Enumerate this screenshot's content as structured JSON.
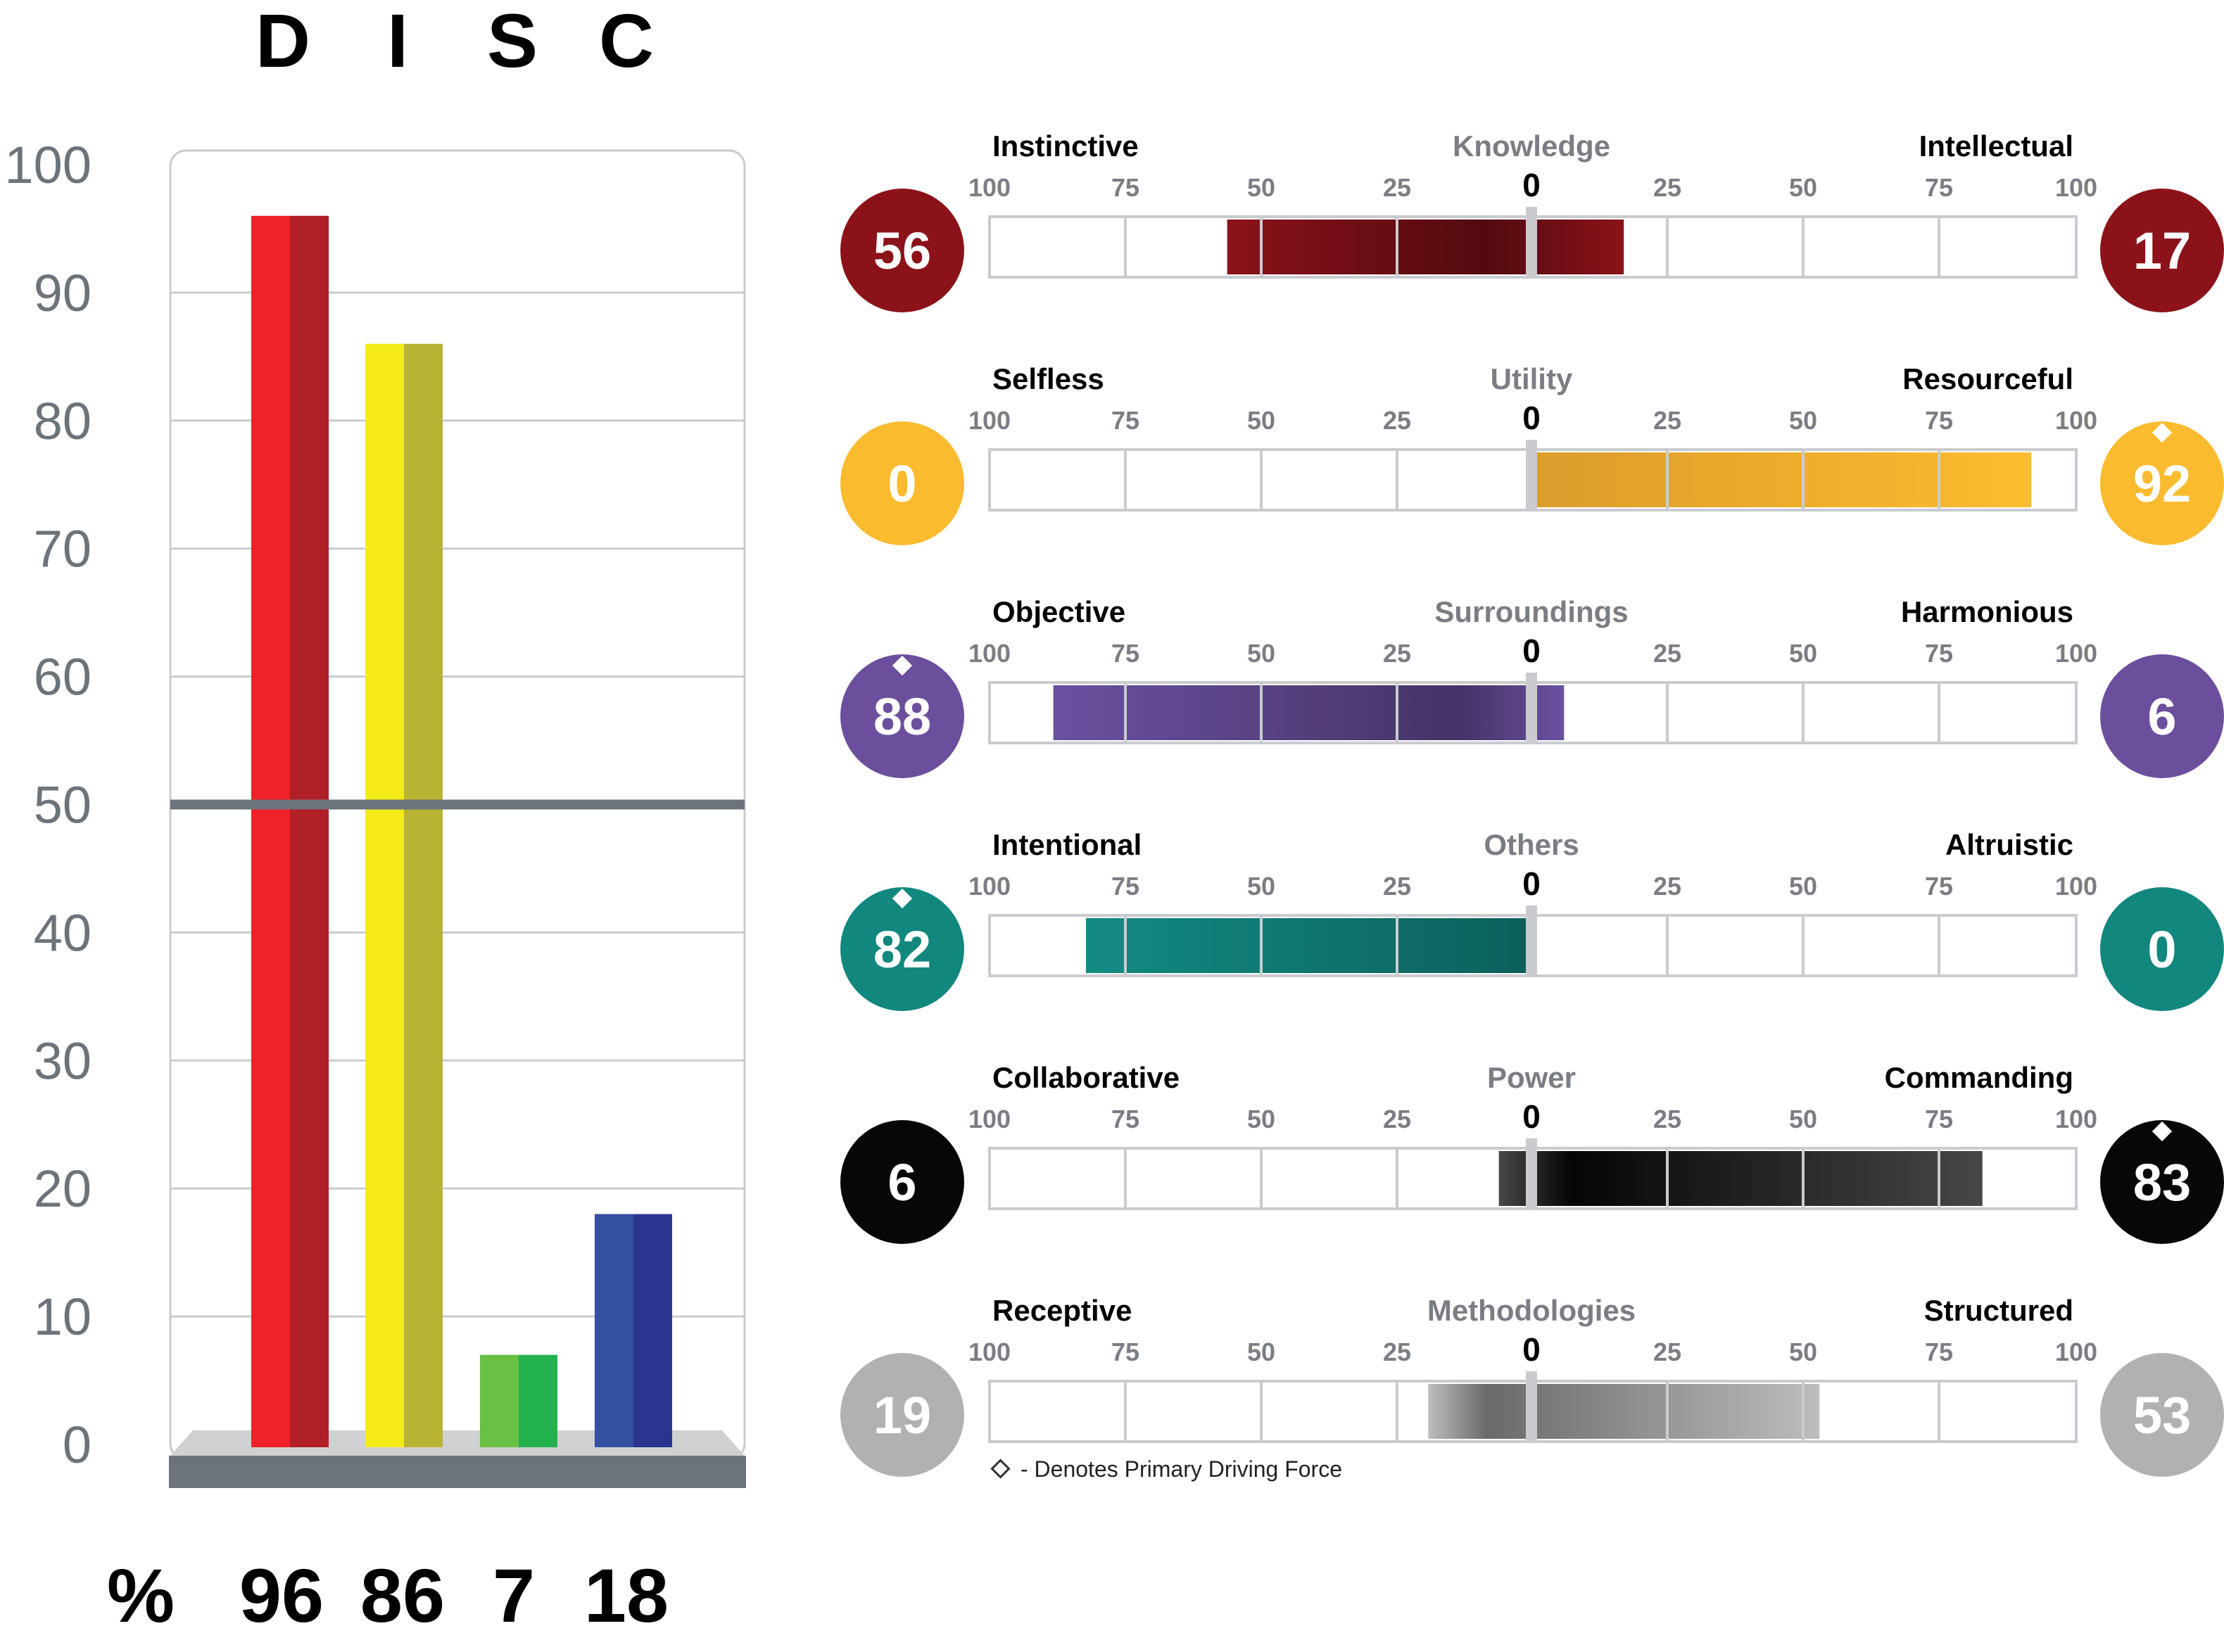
{
  "disc": {
    "type": "bar",
    "categories": [
      "D",
      "I",
      "S",
      "C"
    ],
    "values": [
      96,
      86,
      7,
      18
    ],
    "value_labels": [
      "96",
      "86",
      "7",
      "18"
    ],
    "percent_label": "%",
    "y_ticks": [
      "0",
      "10",
      "20",
      "30",
      "40",
      "50",
      "60",
      "70",
      "80",
      "90",
      "100"
    ],
    "ylim": [
      0,
      100
    ],
    "reference_line": 50,
    "colors": [
      {
        "light": "#ee2228",
        "dark": "#b11f27"
      },
      {
        "light": "#f5eb1a",
        "dark": "#b7b434"
      },
      {
        "light": "#6abf45",
        "dark": "#22b14c"
      },
      {
        "light": "#3450a2",
        "dark": "#2b3590"
      }
    ]
  },
  "motivators": {
    "tick_labels": [
      "100",
      "75",
      "50",
      "25",
      "0",
      "25",
      "50",
      "75",
      "100"
    ],
    "rows": [
      {
        "name": "Knowledge",
        "left_label": "Instinctive",
        "right_label": "Intellectual",
        "left_value": 56,
        "right_value": 17,
        "left_display": "56",
        "right_display": "17",
        "primary": "none",
        "color": "#8b1219",
        "bar_light": "#8b1219",
        "bar_dark": "#520a0f"
      },
      {
        "name": "Utility",
        "left_label": "Selfless",
        "right_label": "Resourceful",
        "left_value": 0,
        "right_value": 92,
        "left_display": "0",
        "right_display": "92",
        "primary": "right",
        "color": "#fbbb2e",
        "bar_light": "#fbbd2f",
        "bar_dark": "#dc9c2b"
      },
      {
        "name": "Surroundings",
        "left_label": "Objective",
        "right_label": "Harmonious",
        "left_value": 88,
        "right_value": 6,
        "left_display": "88",
        "right_display": "6",
        "primary": "left",
        "color": "#6b4f9d",
        "bar_light": "#6a51a1",
        "bar_dark": "#453366"
      },
      {
        "name": "Others",
        "left_label": "Intentional",
        "right_label": "Altruistic",
        "left_value": 82,
        "right_value": 0,
        "left_display": "82",
        "right_display": "0",
        "primary": "left",
        "color": "#11877e",
        "bar_light": "#128b83",
        "bar_dark": "#0c5f5b"
      },
      {
        "name": "Power",
        "left_label": "Collaborative",
        "right_label": "Commanding",
        "left_value": 6,
        "right_value": 83,
        "left_display": "6",
        "right_display": "83",
        "primary": "right",
        "color": "#070707",
        "bar_light": "#474747",
        "bar_dark": "#050505"
      },
      {
        "name": "Methodologies",
        "left_label": "Receptive",
        "right_label": "Structured",
        "left_value": 19,
        "right_value": 53,
        "left_display": "19",
        "right_display": "53",
        "primary": "none",
        "color": "#b1b1b1",
        "bar_light": "#bdbdbd",
        "bar_dark": "#6a6a6a"
      }
    ],
    "legend_symbol": "diamond-outline-icon",
    "legend_text": "- Denotes Primary Driving Force"
  }
}
